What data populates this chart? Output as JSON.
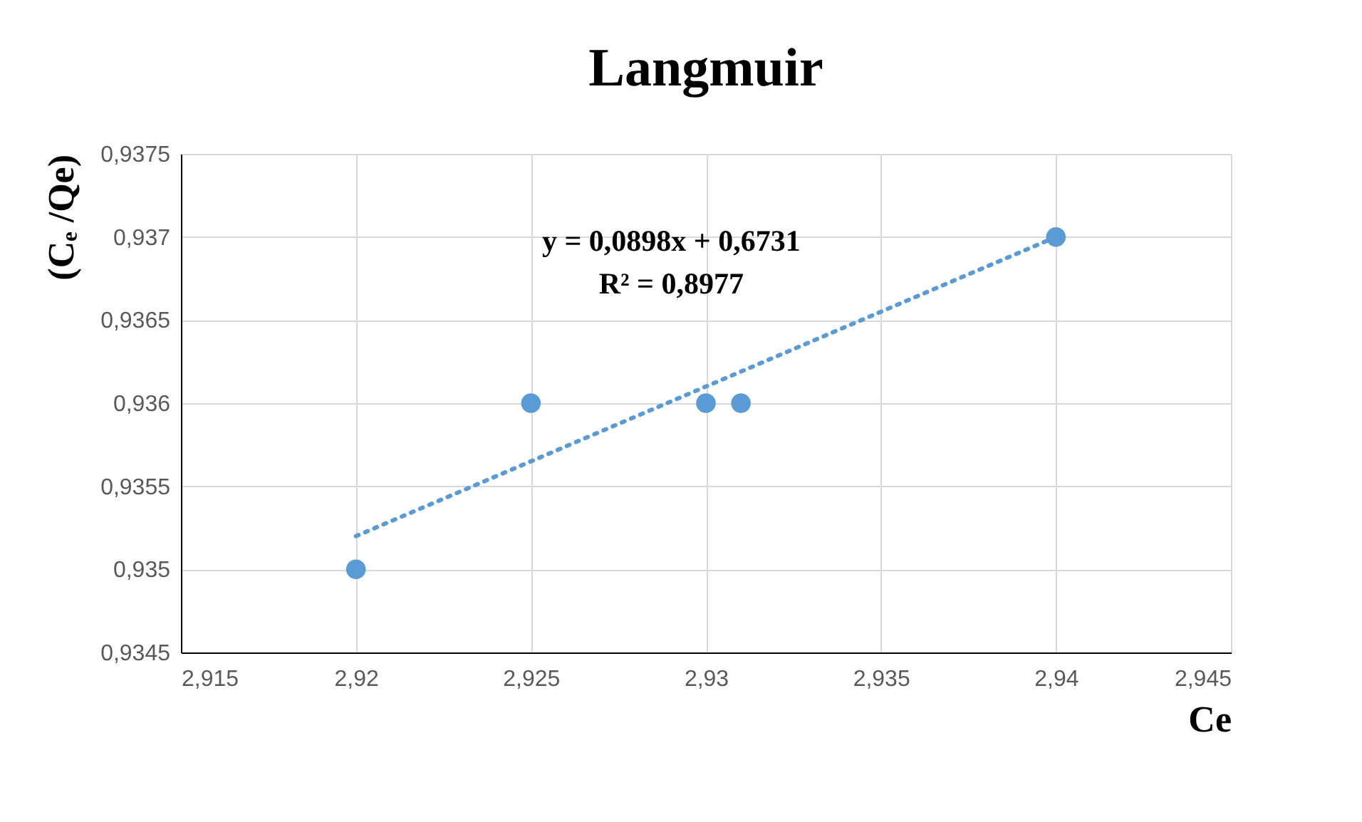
{
  "chart_data": {
    "type": "scatter",
    "title": "Langmuir",
    "xlabel": "Ce",
    "ylabel": "(Cₑ /Qe)",
    "series": [
      {
        "type": "scatter",
        "color": "#5b9bd5",
        "marker": "circle",
        "x": [
          2.92,
          2.925,
          2.93,
          2.931,
          2.94
        ],
        "values": [
          0.935,
          0.936,
          0.936,
          0.936,
          0.937
        ]
      },
      {
        "type": "line",
        "color": "#5b9bd5",
        "line_style": "dotted",
        "marker": "none",
        "x": [
          2.92,
          2.94
        ],
        "values": [
          0.9352,
          0.937
        ]
      }
    ],
    "xlim": [
      2.915,
      2.945
    ],
    "xticks": [
      {
        "value": 2.915,
        "label": "2,915"
      },
      {
        "value": 2.92,
        "label": "2,92"
      },
      {
        "value": 2.925,
        "label": "2,925"
      },
      {
        "value": 2.93,
        "label": "2,93"
      },
      {
        "value": 2.935,
        "label": "2,935"
      },
      {
        "value": 2.94,
        "label": "2,94"
      },
      {
        "value": 2.945,
        "label": "2,945"
      }
    ],
    "ylim": [
      0.9345,
      0.9375
    ],
    "yticks": [
      {
        "value": 0.9345,
        "label": "0,9345"
      },
      {
        "value": 0.935,
        "label": "0,935"
      },
      {
        "value": 0.9355,
        "label": "0,9355"
      },
      {
        "value": 0.936,
        "label": "0,936"
      },
      {
        "value": 0.9365,
        "label": "0,9365"
      },
      {
        "value": 0.937,
        "label": "0,937"
      },
      {
        "value": 0.9375,
        "label": "0,9375"
      }
    ],
    "grid": true,
    "annotations": [
      "y = 0,0898x + 0,6731",
      "R² = 0,8977"
    ]
  }
}
